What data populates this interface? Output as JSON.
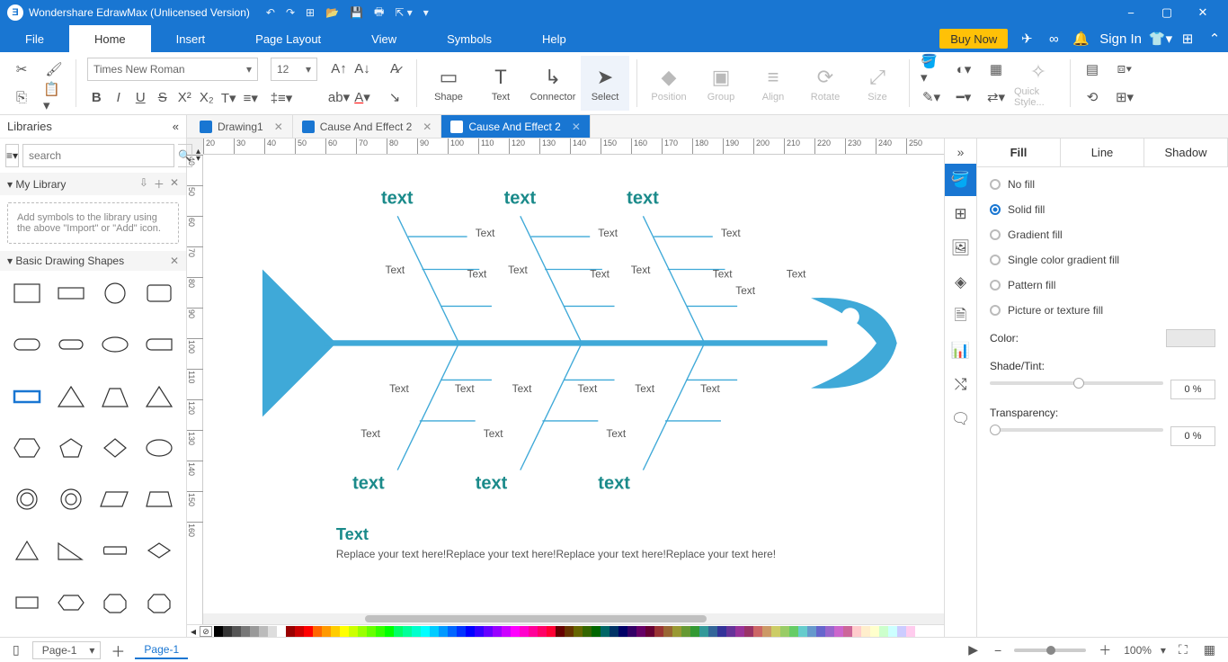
{
  "titlebar": {
    "title": "Wondershare EdrawMax (Unlicensed Version)"
  },
  "menu": {
    "items": [
      "File",
      "Home",
      "Insert",
      "Page Layout",
      "View",
      "Symbols",
      "Help"
    ],
    "active": 1,
    "buy": "Buy Now",
    "signin": "Sign In"
  },
  "ribbon": {
    "font": "Times New Roman",
    "size": "12",
    "shape": "Shape",
    "text": "Text",
    "connector": "Connector",
    "select": "Select",
    "position": "Position",
    "group": "Group",
    "align": "Align",
    "rotate": "Rotate",
    "sizelbl": "Size",
    "quick": "Quick Style..."
  },
  "doctabs": [
    {
      "label": "Drawing1",
      "active": false
    },
    {
      "label": "Cause And Effect 2",
      "active": false
    },
    {
      "label": "Cause And Effect 2",
      "active": true
    }
  ],
  "lib": {
    "title": "Libraries",
    "search": "search",
    "mylib": "My Library",
    "hint": "Add symbols to the library using the above \"Import\" or \"Add\" icon.",
    "basic": "Basic Drawing Shapes"
  },
  "canvas": {
    "mainCats": [
      "text",
      "text",
      "text",
      "text",
      "text",
      "text"
    ],
    "minis": [
      "Text",
      "Text",
      "Text",
      "Text",
      "Text",
      "Text",
      "Text",
      "Text",
      "Text",
      "Text",
      "Text",
      "Text",
      "Text",
      "Text",
      "Text",
      "Text",
      "Text"
    ],
    "footTitle": "Text",
    "footBody": "Replace your text here!Replace your text here!Replace your text here!Replace your text here!",
    "fishColor": "#3fa9d8",
    "catColor": "#1a8a8a"
  },
  "rulerH": [
    20,
    30,
    40,
    50,
    60,
    70,
    80,
    90,
    100,
    110,
    120,
    130,
    140,
    150,
    160,
    170,
    180,
    190,
    200,
    210,
    220,
    230,
    240,
    250
  ],
  "rulerV": [
    40,
    50,
    60,
    70,
    80,
    90,
    100,
    110,
    120,
    130,
    140,
    150,
    160
  ],
  "props": {
    "tabs": [
      "Fill",
      "Line",
      "Shadow"
    ],
    "active": 0,
    "opts": [
      "No fill",
      "Solid fill",
      "Gradient fill",
      "Single color gradient fill",
      "Pattern fill",
      "Picture or texture fill"
    ],
    "sel": 1,
    "color": "Color:",
    "shade": "Shade/Tint:",
    "transp": "Transparency:",
    "pct": "0 %"
  },
  "status": {
    "page": "Page-1",
    "pagetab": "Page-1",
    "zoom": "100% "
  },
  "colorpal": [
    "#000",
    "#333",
    "#555",
    "#777",
    "#999",
    "#bbb",
    "#ddd",
    "#fff",
    "#900",
    "#c00",
    "#f00",
    "#f60",
    "#f90",
    "#fc0",
    "#ff0",
    "#cf0",
    "#9f0",
    "#6f0",
    "#3f0",
    "#0f0",
    "#0f6",
    "#0f9",
    "#0fc",
    "#0ff",
    "#0cf",
    "#09f",
    "#06f",
    "#03f",
    "#00f",
    "#30f",
    "#60f",
    "#90f",
    "#c0f",
    "#f0f",
    "#f0c",
    "#f09",
    "#f06",
    "#f03",
    "#600",
    "#630",
    "#660",
    "#360",
    "#060",
    "#066",
    "#036",
    "#006",
    "#306",
    "#606",
    "#603",
    "#933",
    "#963",
    "#993",
    "#693",
    "#393",
    "#399",
    "#369",
    "#339",
    "#639",
    "#939",
    "#936",
    "#c66",
    "#c96",
    "#cc6",
    "#9c6",
    "#6c6",
    "#6cc",
    "#69c",
    "#66c",
    "#96c",
    "#c6c",
    "#c69",
    "#fcc",
    "#fec",
    "#ffc",
    "#cfc",
    "#cff",
    "#ccf",
    "#fce"
  ]
}
